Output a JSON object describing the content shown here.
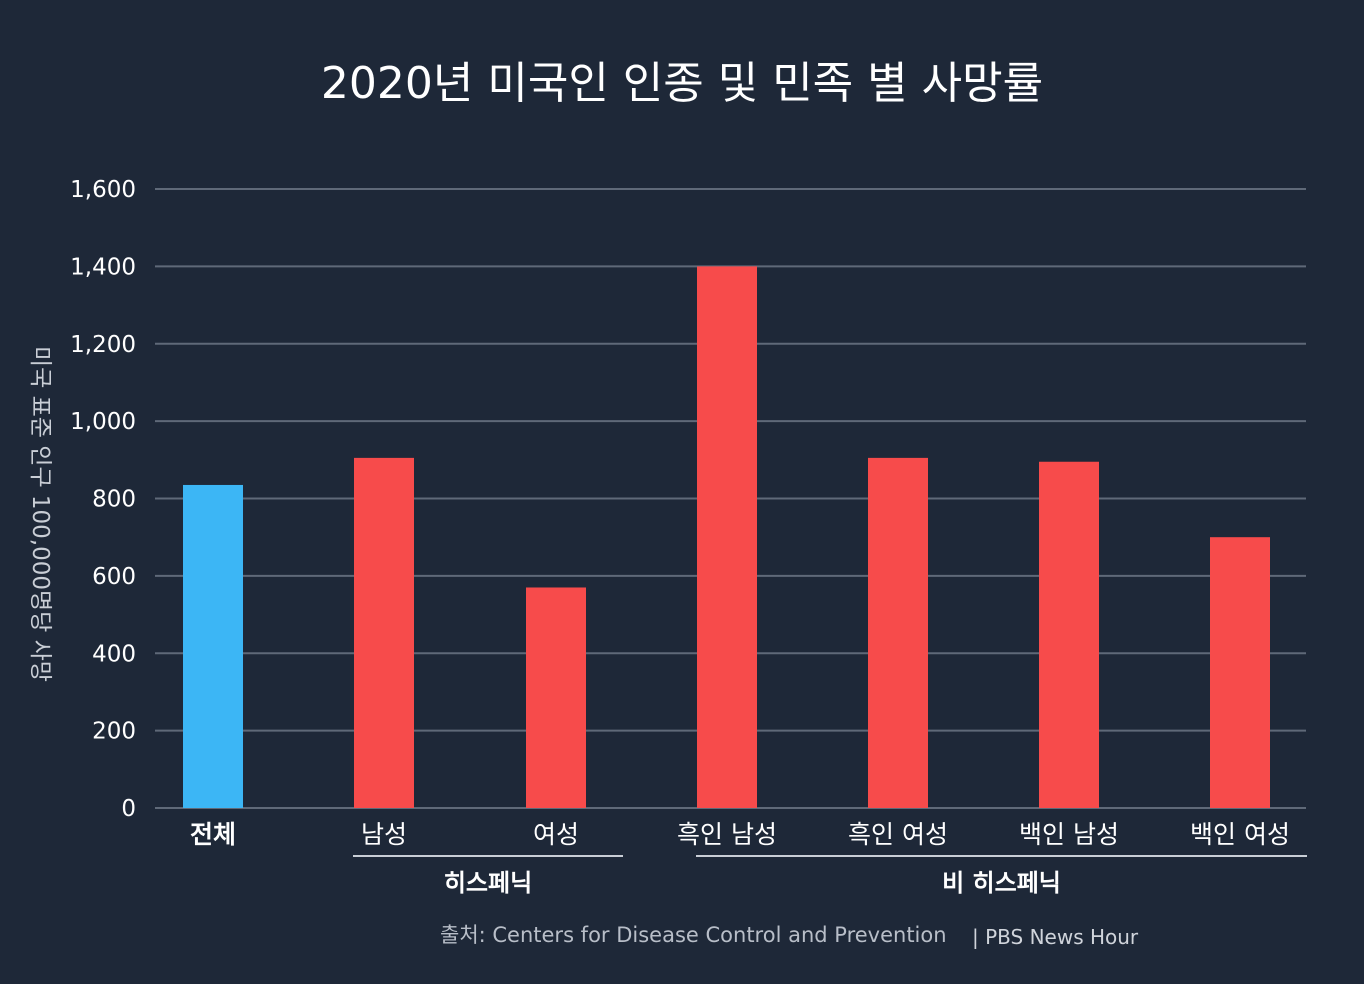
{
  "chart_data": {
    "type": "bar",
    "title": "2020년 미국인 인종 및 민족 별 사망률",
    "ylabel": "미국 표준 인구 100,000명당 사망",
    "xlabel": "",
    "ylim": [
      0,
      1600
    ],
    "yticks": [
      0,
      200,
      400,
      600,
      800,
      1000,
      1200,
      1400,
      1600
    ],
    "ytick_labels": [
      "0",
      "200",
      "400",
      "600",
      "800",
      "1,000",
      "1,200",
      "1,400",
      "1,600"
    ],
    "categories": [
      "전체",
      "남성",
      "여성",
      "흑인 남성",
      "흑인 여성",
      "백인 남성",
      "백인 여성"
    ],
    "values": [
      835,
      905,
      570,
      1400,
      905,
      895,
      700
    ],
    "groups": [
      {
        "label": "히스페닉",
        "start": 1,
        "end": 2
      },
      {
        "label": "비 히스페닉",
        "start": 3,
        "end": 6
      }
    ],
    "grid": true
  },
  "colors": {
    "background": "#1e2838",
    "total_bar": "#3cb6f5",
    "group_bar": "#f74b4b",
    "grid": "#5f6978"
  },
  "source": {
    "label": "출처: Centers for Disease Control and Prevention",
    "brand": "| PBS News Hour"
  }
}
